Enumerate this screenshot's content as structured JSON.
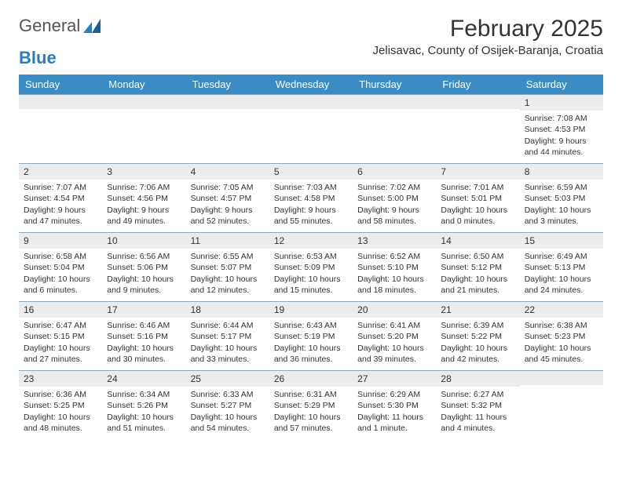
{
  "logo": {
    "text_a": "General",
    "text_b": "Blue"
  },
  "title": "February 2025",
  "location": "Jelisavac, County of Osijek-Baranja, Croatia",
  "colors": {
    "header_bg": "#3b8bc4",
    "header_text": "#ffffff",
    "cell_border": "#8aa8bf",
    "daynum_bg": "#ececec",
    "body_text": "#333333"
  },
  "day_names": [
    "Sunday",
    "Monday",
    "Tuesday",
    "Wednesday",
    "Thursday",
    "Friday",
    "Saturday"
  ],
  "weeks": [
    [
      {
        "day": "",
        "sunrise": "",
        "sunset": "",
        "daylight1": "",
        "daylight2": ""
      },
      {
        "day": "",
        "sunrise": "",
        "sunset": "",
        "daylight1": "",
        "daylight2": ""
      },
      {
        "day": "",
        "sunrise": "",
        "sunset": "",
        "daylight1": "",
        "daylight2": ""
      },
      {
        "day": "",
        "sunrise": "",
        "sunset": "",
        "daylight1": "",
        "daylight2": ""
      },
      {
        "day": "",
        "sunrise": "",
        "sunset": "",
        "daylight1": "",
        "daylight2": ""
      },
      {
        "day": "",
        "sunrise": "",
        "sunset": "",
        "daylight1": "",
        "daylight2": ""
      },
      {
        "day": "1",
        "sunrise": "Sunrise: 7:08 AM",
        "sunset": "Sunset: 4:53 PM",
        "daylight1": "Daylight: 9 hours",
        "daylight2": "and 44 minutes."
      }
    ],
    [
      {
        "day": "2",
        "sunrise": "Sunrise: 7:07 AM",
        "sunset": "Sunset: 4:54 PM",
        "daylight1": "Daylight: 9 hours",
        "daylight2": "and 47 minutes."
      },
      {
        "day": "3",
        "sunrise": "Sunrise: 7:06 AM",
        "sunset": "Sunset: 4:56 PM",
        "daylight1": "Daylight: 9 hours",
        "daylight2": "and 49 minutes."
      },
      {
        "day": "4",
        "sunrise": "Sunrise: 7:05 AM",
        "sunset": "Sunset: 4:57 PM",
        "daylight1": "Daylight: 9 hours",
        "daylight2": "and 52 minutes."
      },
      {
        "day": "5",
        "sunrise": "Sunrise: 7:03 AM",
        "sunset": "Sunset: 4:58 PM",
        "daylight1": "Daylight: 9 hours",
        "daylight2": "and 55 minutes."
      },
      {
        "day": "6",
        "sunrise": "Sunrise: 7:02 AM",
        "sunset": "Sunset: 5:00 PM",
        "daylight1": "Daylight: 9 hours",
        "daylight2": "and 58 minutes."
      },
      {
        "day": "7",
        "sunrise": "Sunrise: 7:01 AM",
        "sunset": "Sunset: 5:01 PM",
        "daylight1": "Daylight: 10 hours",
        "daylight2": "and 0 minutes."
      },
      {
        "day": "8",
        "sunrise": "Sunrise: 6:59 AM",
        "sunset": "Sunset: 5:03 PM",
        "daylight1": "Daylight: 10 hours",
        "daylight2": "and 3 minutes."
      }
    ],
    [
      {
        "day": "9",
        "sunrise": "Sunrise: 6:58 AM",
        "sunset": "Sunset: 5:04 PM",
        "daylight1": "Daylight: 10 hours",
        "daylight2": "and 6 minutes."
      },
      {
        "day": "10",
        "sunrise": "Sunrise: 6:56 AM",
        "sunset": "Sunset: 5:06 PM",
        "daylight1": "Daylight: 10 hours",
        "daylight2": "and 9 minutes."
      },
      {
        "day": "11",
        "sunrise": "Sunrise: 6:55 AM",
        "sunset": "Sunset: 5:07 PM",
        "daylight1": "Daylight: 10 hours",
        "daylight2": "and 12 minutes."
      },
      {
        "day": "12",
        "sunrise": "Sunrise: 6:53 AM",
        "sunset": "Sunset: 5:09 PM",
        "daylight1": "Daylight: 10 hours",
        "daylight2": "and 15 minutes."
      },
      {
        "day": "13",
        "sunrise": "Sunrise: 6:52 AM",
        "sunset": "Sunset: 5:10 PM",
        "daylight1": "Daylight: 10 hours",
        "daylight2": "and 18 minutes."
      },
      {
        "day": "14",
        "sunrise": "Sunrise: 6:50 AM",
        "sunset": "Sunset: 5:12 PM",
        "daylight1": "Daylight: 10 hours",
        "daylight2": "and 21 minutes."
      },
      {
        "day": "15",
        "sunrise": "Sunrise: 6:49 AM",
        "sunset": "Sunset: 5:13 PM",
        "daylight1": "Daylight: 10 hours",
        "daylight2": "and 24 minutes."
      }
    ],
    [
      {
        "day": "16",
        "sunrise": "Sunrise: 6:47 AM",
        "sunset": "Sunset: 5:15 PM",
        "daylight1": "Daylight: 10 hours",
        "daylight2": "and 27 minutes."
      },
      {
        "day": "17",
        "sunrise": "Sunrise: 6:46 AM",
        "sunset": "Sunset: 5:16 PM",
        "daylight1": "Daylight: 10 hours",
        "daylight2": "and 30 minutes."
      },
      {
        "day": "18",
        "sunrise": "Sunrise: 6:44 AM",
        "sunset": "Sunset: 5:17 PM",
        "daylight1": "Daylight: 10 hours",
        "daylight2": "and 33 minutes."
      },
      {
        "day": "19",
        "sunrise": "Sunrise: 6:43 AM",
        "sunset": "Sunset: 5:19 PM",
        "daylight1": "Daylight: 10 hours",
        "daylight2": "and 36 minutes."
      },
      {
        "day": "20",
        "sunrise": "Sunrise: 6:41 AM",
        "sunset": "Sunset: 5:20 PM",
        "daylight1": "Daylight: 10 hours",
        "daylight2": "and 39 minutes."
      },
      {
        "day": "21",
        "sunrise": "Sunrise: 6:39 AM",
        "sunset": "Sunset: 5:22 PM",
        "daylight1": "Daylight: 10 hours",
        "daylight2": "and 42 minutes."
      },
      {
        "day": "22",
        "sunrise": "Sunrise: 6:38 AM",
        "sunset": "Sunset: 5:23 PM",
        "daylight1": "Daylight: 10 hours",
        "daylight2": "and 45 minutes."
      }
    ],
    [
      {
        "day": "23",
        "sunrise": "Sunrise: 6:36 AM",
        "sunset": "Sunset: 5:25 PM",
        "daylight1": "Daylight: 10 hours",
        "daylight2": "and 48 minutes."
      },
      {
        "day": "24",
        "sunrise": "Sunrise: 6:34 AM",
        "sunset": "Sunset: 5:26 PM",
        "daylight1": "Daylight: 10 hours",
        "daylight2": "and 51 minutes."
      },
      {
        "day": "25",
        "sunrise": "Sunrise: 6:33 AM",
        "sunset": "Sunset: 5:27 PM",
        "daylight1": "Daylight: 10 hours",
        "daylight2": "and 54 minutes."
      },
      {
        "day": "26",
        "sunrise": "Sunrise: 6:31 AM",
        "sunset": "Sunset: 5:29 PM",
        "daylight1": "Daylight: 10 hours",
        "daylight2": "and 57 minutes."
      },
      {
        "day": "27",
        "sunrise": "Sunrise: 6:29 AM",
        "sunset": "Sunset: 5:30 PM",
        "daylight1": "Daylight: 11 hours",
        "daylight2": "and 1 minute."
      },
      {
        "day": "28",
        "sunrise": "Sunrise: 6:27 AM",
        "sunset": "Sunset: 5:32 PM",
        "daylight1": "Daylight: 11 hours",
        "daylight2": "and 4 minutes."
      },
      {
        "day": "",
        "sunrise": "",
        "sunset": "",
        "daylight1": "",
        "daylight2": ""
      }
    ]
  ]
}
